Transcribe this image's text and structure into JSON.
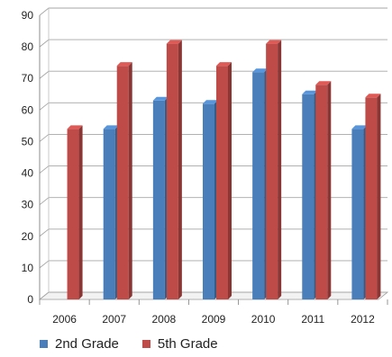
{
  "chart_data": {
    "type": "bar",
    "title": "",
    "xlabel": "",
    "ylabel": "",
    "categories": [
      "2006",
      "2007",
      "2008",
      "2009",
      "2010",
      "2011",
      "2012"
    ],
    "series": [
      {
        "name": "2nd Grade",
        "values": [
          0,
          54,
          63,
          62,
          72,
          65,
          54
        ],
        "color": "#4a7ebb"
      },
      {
        "name": "5th Grade",
        "values": [
          54,
          74,
          81,
          74,
          81,
          68,
          64
        ],
        "color": "#be4b48"
      }
    ],
    "ylim": [
      0,
      90
    ],
    "yticks": [
      0,
      10,
      20,
      30,
      40,
      50,
      60,
      70,
      80,
      90
    ],
    "grid": true,
    "legend_position": "bottom-left",
    "style": "3d-column"
  }
}
